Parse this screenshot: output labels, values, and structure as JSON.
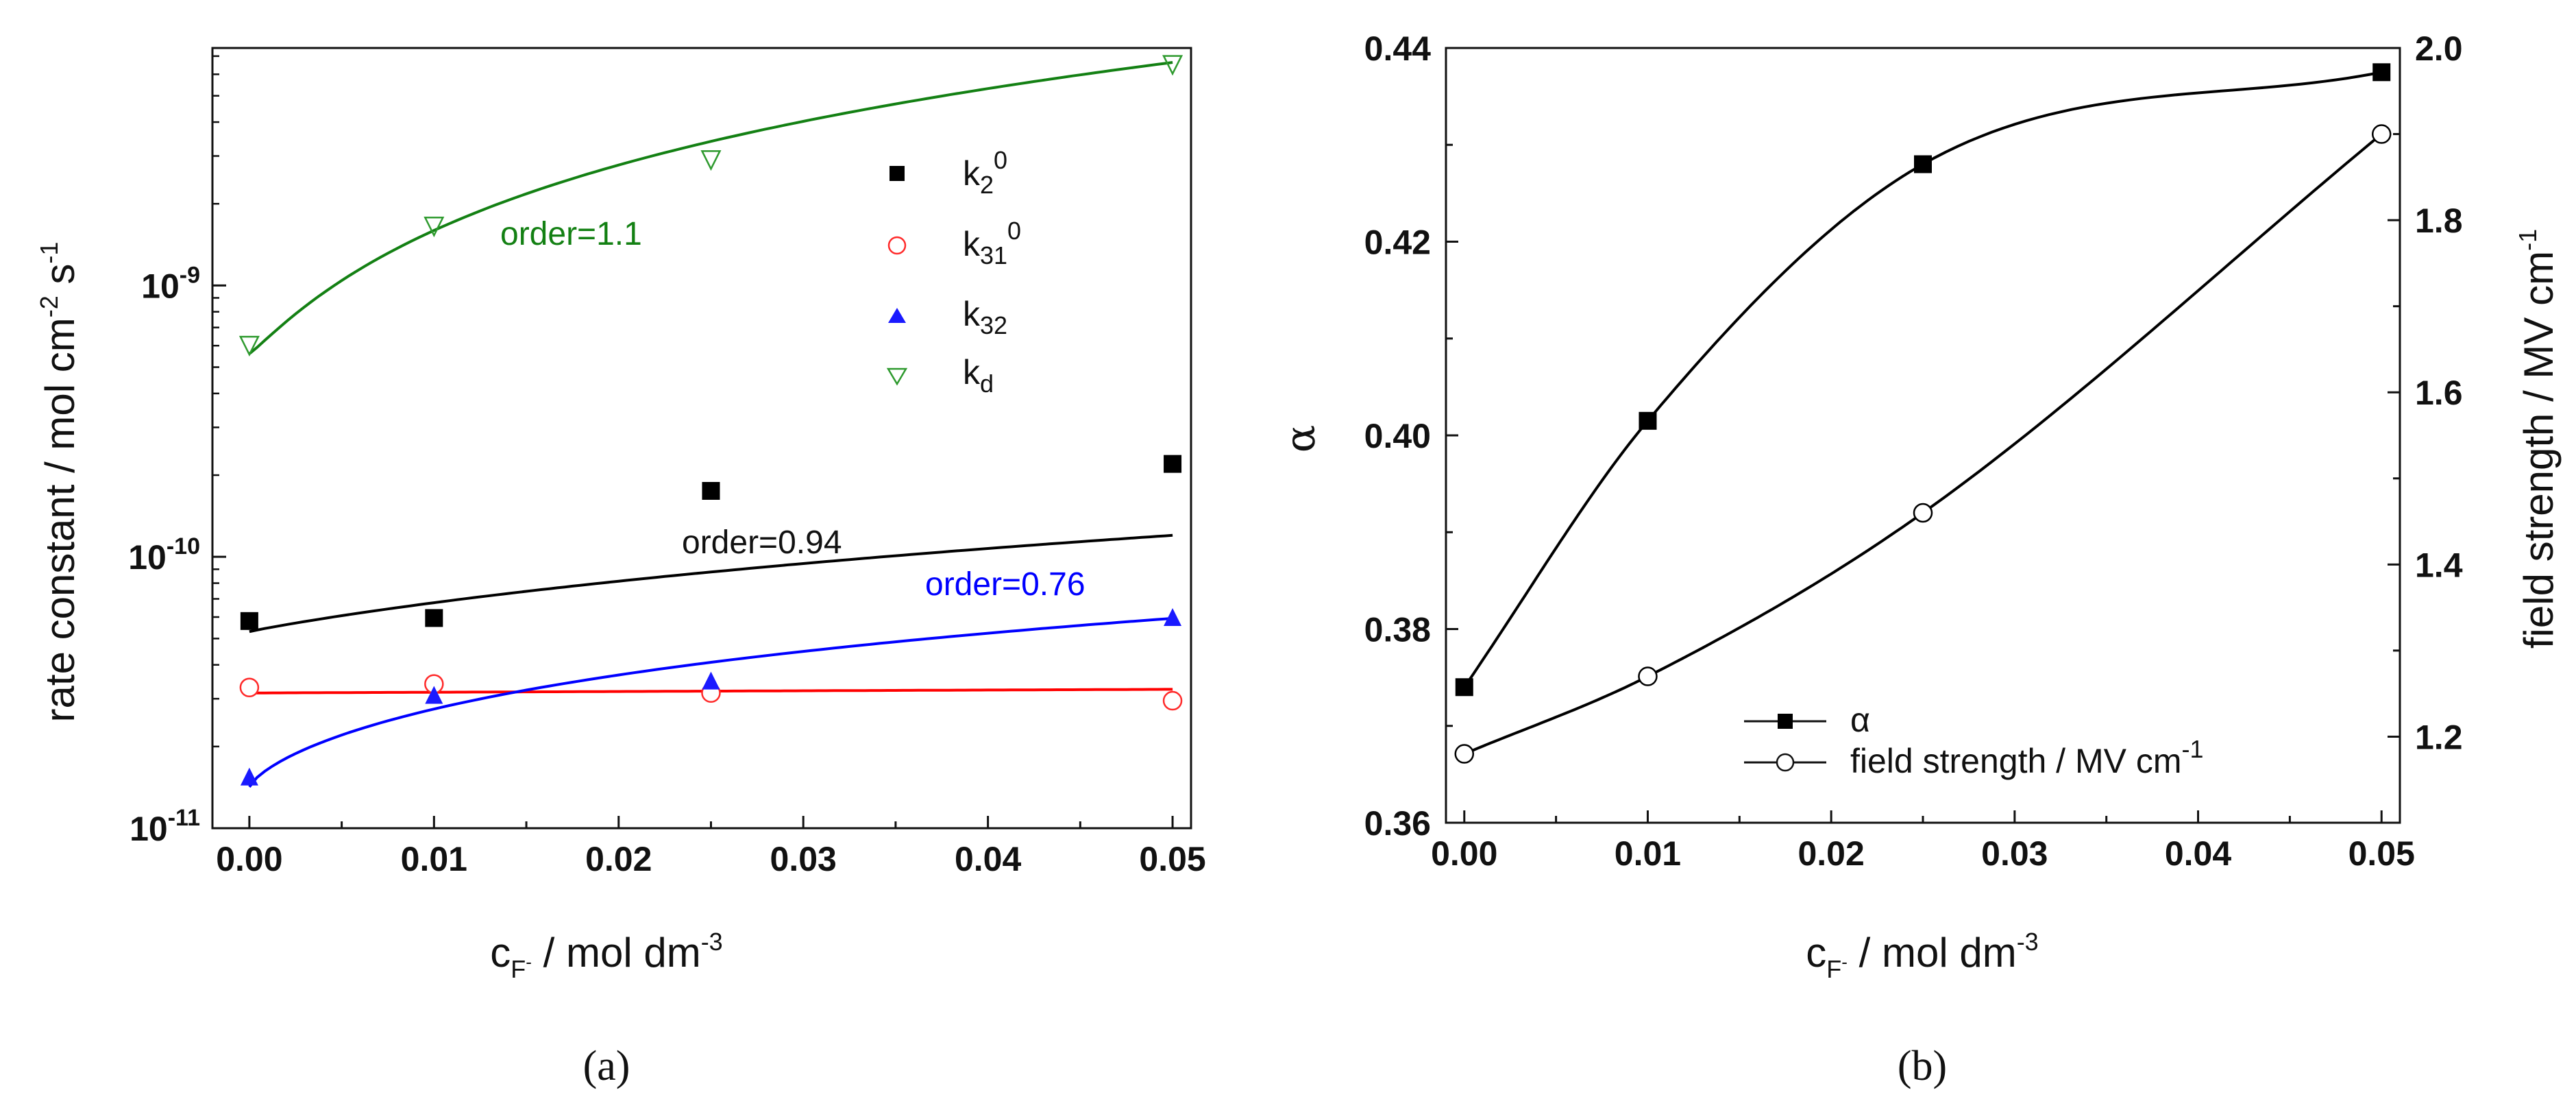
{
  "chart_data": [
    {
      "type": "scatter",
      "panel_label": "(a)",
      "ylabel": "rate constant / mol cm",
      "ylabel_sup1": "-2",
      "ylabel_mid": " s",
      "ylabel_sup2": "-1",
      "xlabel": "c",
      "xlabel_sub": "F",
      "xlabel_subsup": "-",
      "xlabel_rest": " / mol dm",
      "xlabel_sup": "-3",
      "xlim": [
        -0.002,
        0.051
      ],
      "ylim": [
        1e-11,
        7.5e-09
      ],
      "yscale": "log",
      "x_ticks": [
        "0.00",
        "0.01",
        "0.02",
        "0.03",
        "0.04",
        "0.05"
      ],
      "y_ticks": [
        {
          "base": "10",
          "exp": "-11"
        },
        {
          "base": "10",
          "exp": "-10"
        },
        {
          "base": "10",
          "exp": "-9"
        }
      ],
      "x": [
        0.0,
        0.01,
        0.025,
        0.05
      ],
      "series": [
        {
          "name": "k2 0",
          "label_main": "k",
          "label_sub": "2",
          "label_sup": "0",
          "marker": "filled-square",
          "color": "#000000",
          "values": [
            5.8e-11,
            5.95e-11,
            1.75e-10,
            2.2e-10
          ],
          "fit_color": "#000000",
          "fit_order": "order=0.94"
        },
        {
          "name": "k31 0",
          "label_main": "k",
          "label_sub": "31",
          "label_sup": "0",
          "marker": "open-circle",
          "color": "#ff2a2a",
          "values": [
            3.3e-11,
            3.4e-11,
            3.15e-11,
            2.95e-11
          ],
          "fit_color": "#ff0000",
          "fit_order": ""
        },
        {
          "name": "k32",
          "label_main": "k",
          "label_sub": "32",
          "label_sup": "",
          "marker": "filled-triangle-up",
          "color": "#1a1aff",
          "values": [
            1.55e-11,
            3.1e-11,
            3.5e-11,
            6e-11
          ],
          "fit_color": "#0000ff",
          "fit_order": "order=0.76"
        },
        {
          "name": "kd",
          "label_main": "k",
          "label_sub": "d",
          "label_sup": "",
          "marker": "open-triangle-down",
          "color": "#2e9a2e",
          "values": [
            6e-10,
            1.65e-09,
            2.9e-09,
            6.5e-09
          ],
          "fit_color": "#138013",
          "fit_order": "order=1.1"
        }
      ],
      "annotations": [
        "order=1.1",
        "order=0.94",
        "order=0.76"
      ]
    },
    {
      "type": "line",
      "panel_label": "(b)",
      "ylabel_left": "α",
      "ylabel_right": "field strength / MV cm",
      "ylabel_right_sup": "-1",
      "xlabel": "c",
      "xlabel_sub": "F",
      "xlabel_subsup": "-",
      "xlabel_rest": " / mol dm",
      "xlabel_sup": "-3",
      "xlim": [
        -0.001,
        0.051
      ],
      "ylim_left": [
        0.36,
        0.44
      ],
      "ylim_right": [
        1.1,
        2.0
      ],
      "x_ticks": [
        "0.00",
        "0.01",
        "0.02",
        "0.03",
        "0.04",
        "0.05"
      ],
      "y_ticks_left": [
        "0.36",
        "0.38",
        "0.40",
        "0.42",
        "0.44"
      ],
      "y_ticks_right": [
        "1.2",
        "1.4",
        "1.6",
        "1.8",
        "2.0"
      ],
      "x": [
        0.0,
        0.01,
        0.025,
        0.05
      ],
      "series": [
        {
          "name": "α",
          "label": "α",
          "axis": "left",
          "marker": "filled-square",
          "color": "#000000",
          "values": [
            0.374,
            0.4015,
            0.428,
            0.4375
          ]
        },
        {
          "name": "field strength / MV cm-1",
          "label": "field strength / MV cm",
          "label_sup": "-1",
          "axis": "right",
          "marker": "open-circle",
          "color": "#000000",
          "values": [
            1.18,
            1.27,
            1.46,
            1.9
          ]
        }
      ]
    }
  ]
}
